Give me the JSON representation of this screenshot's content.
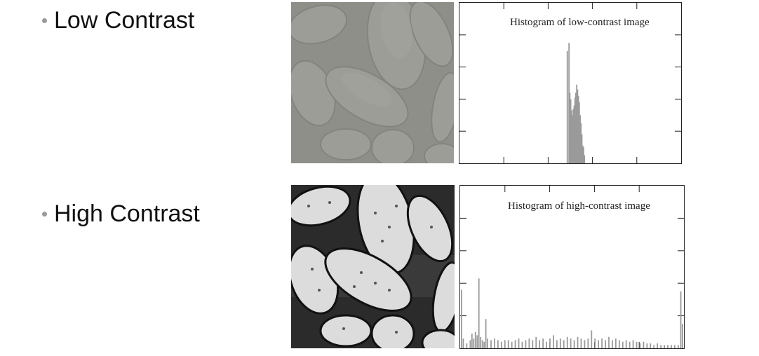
{
  "slide": {
    "bullets": [
      {
        "label": "Low Contrast"
      },
      {
        "label": "High Contrast"
      }
    ]
  },
  "histograms": {
    "low": {
      "title": "Histogram of low-contrast image"
    },
    "high": {
      "title": "Histogram of high-contrast image"
    }
  },
  "chart_data": [
    {
      "type": "bar",
      "title": "Histogram of low-contrast image",
      "xlim": [
        0,
        255
      ],
      "bins": [
        {
          "x": 124,
          "h": 0.7
        },
        {
          "x": 126,
          "h": 0.75
        },
        {
          "x": 127,
          "h": 0.44
        },
        {
          "x": 128,
          "h": 0.4
        },
        {
          "x": 129,
          "h": 0.33
        },
        {
          "x": 130,
          "h": 0.3
        },
        {
          "x": 131,
          "h": 0.34
        },
        {
          "x": 132,
          "h": 0.36
        },
        {
          "x": 133,
          "h": 0.41
        },
        {
          "x": 134,
          "h": 0.44
        },
        {
          "x": 135,
          "h": 0.49
        },
        {
          "x": 136,
          "h": 0.46
        },
        {
          "x": 137,
          "h": 0.42
        },
        {
          "x": 138,
          "h": 0.38
        },
        {
          "x": 139,
          "h": 0.3
        },
        {
          "x": 140,
          "h": 0.25
        },
        {
          "x": 141,
          "h": 0.18
        },
        {
          "x": 142,
          "h": 0.11
        },
        {
          "x": 143,
          "h": 0.1
        },
        {
          "x": 144,
          "h": 0.05
        }
      ]
    },
    {
      "type": "bar",
      "title": "Histogram of high-contrast image",
      "xlim": [
        0,
        255
      ],
      "bins": [
        {
          "x": 0,
          "h": 0.36
        },
        {
          "x": 2,
          "h": 0.06
        },
        {
          "x": 6,
          "h": 0.03
        },
        {
          "x": 10,
          "h": 0.05
        },
        {
          "x": 12,
          "h": 0.09
        },
        {
          "x": 14,
          "h": 0.06
        },
        {
          "x": 16,
          "h": 0.1
        },
        {
          "x": 18,
          "h": 0.08
        },
        {
          "x": 20,
          "h": 0.43
        },
        {
          "x": 22,
          "h": 0.07
        },
        {
          "x": 24,
          "h": 0.05
        },
        {
          "x": 26,
          "h": 0.04
        },
        {
          "x": 28,
          "h": 0.18
        },
        {
          "x": 30,
          "h": 0.06
        },
        {
          "x": 34,
          "h": 0.05
        },
        {
          "x": 38,
          "h": 0.06
        },
        {
          "x": 42,
          "h": 0.05
        },
        {
          "x": 46,
          "h": 0.04
        },
        {
          "x": 50,
          "h": 0.05
        },
        {
          "x": 54,
          "h": 0.05
        },
        {
          "x": 58,
          "h": 0.04
        },
        {
          "x": 62,
          "h": 0.05
        },
        {
          "x": 66,
          "h": 0.06
        },
        {
          "x": 70,
          "h": 0.04
        },
        {
          "x": 74,
          "h": 0.05
        },
        {
          "x": 78,
          "h": 0.06
        },
        {
          "x": 82,
          "h": 0.05
        },
        {
          "x": 86,
          "h": 0.07
        },
        {
          "x": 90,
          "h": 0.05
        },
        {
          "x": 94,
          "h": 0.06
        },
        {
          "x": 98,
          "h": 0.04
        },
        {
          "x": 102,
          "h": 0.06
        },
        {
          "x": 106,
          "h": 0.08
        },
        {
          "x": 110,
          "h": 0.05
        },
        {
          "x": 114,
          "h": 0.06
        },
        {
          "x": 118,
          "h": 0.05
        },
        {
          "x": 122,
          "h": 0.07
        },
        {
          "x": 126,
          "h": 0.06
        },
        {
          "x": 130,
          "h": 0.05
        },
        {
          "x": 134,
          "h": 0.07
        },
        {
          "x": 138,
          "h": 0.06
        },
        {
          "x": 142,
          "h": 0.05
        },
        {
          "x": 146,
          "h": 0.06
        },
        {
          "x": 150,
          "h": 0.11
        },
        {
          "x": 154,
          "h": 0.06
        },
        {
          "x": 158,
          "h": 0.05
        },
        {
          "x": 162,
          "h": 0.06
        },
        {
          "x": 166,
          "h": 0.05
        },
        {
          "x": 170,
          "h": 0.07
        },
        {
          "x": 174,
          "h": 0.05
        },
        {
          "x": 178,
          "h": 0.06
        },
        {
          "x": 182,
          "h": 0.05
        },
        {
          "x": 186,
          "h": 0.04
        },
        {
          "x": 190,
          "h": 0.05
        },
        {
          "x": 194,
          "h": 0.04
        },
        {
          "x": 198,
          "h": 0.05
        },
        {
          "x": 202,
          "h": 0.04
        },
        {
          "x": 206,
          "h": 0.03
        },
        {
          "x": 210,
          "h": 0.04
        },
        {
          "x": 214,
          "h": 0.03
        },
        {
          "x": 218,
          "h": 0.03
        },
        {
          "x": 222,
          "h": 0.02
        },
        {
          "x": 226,
          "h": 0.03
        },
        {
          "x": 230,
          "h": 0.02
        },
        {
          "x": 234,
          "h": 0.02
        },
        {
          "x": 238,
          "h": 0.02
        },
        {
          "x": 242,
          "h": 0.02
        },
        {
          "x": 246,
          "h": 0.02
        },
        {
          "x": 250,
          "h": 0.02
        },
        {
          "x": 253,
          "h": 0.35
        },
        {
          "x": 255,
          "h": 0.15
        }
      ]
    }
  ]
}
